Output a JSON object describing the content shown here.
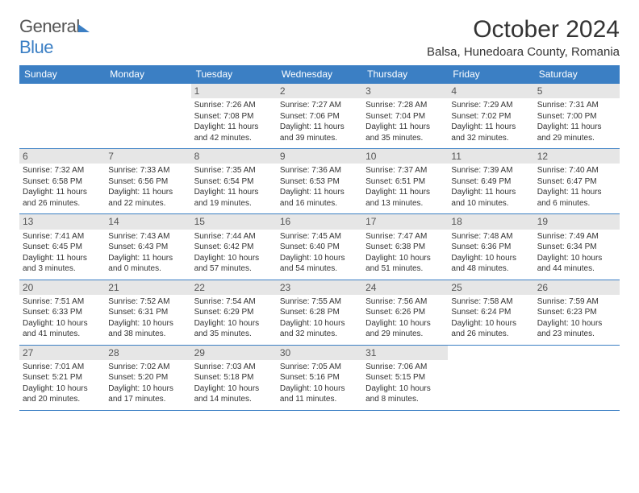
{
  "brand": {
    "first": "General",
    "second": "Blue"
  },
  "title": "October 2024",
  "location": "Balsa, Hunedoara County, Romania",
  "colors": {
    "header_bg": "#3b7fc4",
    "header_text": "#ffffff",
    "daynum_bg": "#e6e6e6",
    "border": "#3b7fc4",
    "text": "#333333"
  },
  "dayNames": [
    "Sunday",
    "Monday",
    "Tuesday",
    "Wednesday",
    "Thursday",
    "Friday",
    "Saturday"
  ],
  "weeks": [
    [
      null,
      null,
      {
        "n": "1",
        "sr": "Sunrise: 7:26 AM",
        "ss": "Sunset: 7:08 PM",
        "dl1": "Daylight: 11 hours",
        "dl2": "and 42 minutes."
      },
      {
        "n": "2",
        "sr": "Sunrise: 7:27 AM",
        "ss": "Sunset: 7:06 PM",
        "dl1": "Daylight: 11 hours",
        "dl2": "and 39 minutes."
      },
      {
        "n": "3",
        "sr": "Sunrise: 7:28 AM",
        "ss": "Sunset: 7:04 PM",
        "dl1": "Daylight: 11 hours",
        "dl2": "and 35 minutes."
      },
      {
        "n": "4",
        "sr": "Sunrise: 7:29 AM",
        "ss": "Sunset: 7:02 PM",
        "dl1": "Daylight: 11 hours",
        "dl2": "and 32 minutes."
      },
      {
        "n": "5",
        "sr": "Sunrise: 7:31 AM",
        "ss": "Sunset: 7:00 PM",
        "dl1": "Daylight: 11 hours",
        "dl2": "and 29 minutes."
      }
    ],
    [
      {
        "n": "6",
        "sr": "Sunrise: 7:32 AM",
        "ss": "Sunset: 6:58 PM",
        "dl1": "Daylight: 11 hours",
        "dl2": "and 26 minutes."
      },
      {
        "n": "7",
        "sr": "Sunrise: 7:33 AM",
        "ss": "Sunset: 6:56 PM",
        "dl1": "Daylight: 11 hours",
        "dl2": "and 22 minutes."
      },
      {
        "n": "8",
        "sr": "Sunrise: 7:35 AM",
        "ss": "Sunset: 6:54 PM",
        "dl1": "Daylight: 11 hours",
        "dl2": "and 19 minutes."
      },
      {
        "n": "9",
        "sr": "Sunrise: 7:36 AM",
        "ss": "Sunset: 6:53 PM",
        "dl1": "Daylight: 11 hours",
        "dl2": "and 16 minutes."
      },
      {
        "n": "10",
        "sr": "Sunrise: 7:37 AM",
        "ss": "Sunset: 6:51 PM",
        "dl1": "Daylight: 11 hours",
        "dl2": "and 13 minutes."
      },
      {
        "n": "11",
        "sr": "Sunrise: 7:39 AM",
        "ss": "Sunset: 6:49 PM",
        "dl1": "Daylight: 11 hours",
        "dl2": "and 10 minutes."
      },
      {
        "n": "12",
        "sr": "Sunrise: 7:40 AM",
        "ss": "Sunset: 6:47 PM",
        "dl1": "Daylight: 11 hours",
        "dl2": "and 6 minutes."
      }
    ],
    [
      {
        "n": "13",
        "sr": "Sunrise: 7:41 AM",
        "ss": "Sunset: 6:45 PM",
        "dl1": "Daylight: 11 hours",
        "dl2": "and 3 minutes."
      },
      {
        "n": "14",
        "sr": "Sunrise: 7:43 AM",
        "ss": "Sunset: 6:43 PM",
        "dl1": "Daylight: 11 hours",
        "dl2": "and 0 minutes."
      },
      {
        "n": "15",
        "sr": "Sunrise: 7:44 AM",
        "ss": "Sunset: 6:42 PM",
        "dl1": "Daylight: 10 hours",
        "dl2": "and 57 minutes."
      },
      {
        "n": "16",
        "sr": "Sunrise: 7:45 AM",
        "ss": "Sunset: 6:40 PM",
        "dl1": "Daylight: 10 hours",
        "dl2": "and 54 minutes."
      },
      {
        "n": "17",
        "sr": "Sunrise: 7:47 AM",
        "ss": "Sunset: 6:38 PM",
        "dl1": "Daylight: 10 hours",
        "dl2": "and 51 minutes."
      },
      {
        "n": "18",
        "sr": "Sunrise: 7:48 AM",
        "ss": "Sunset: 6:36 PM",
        "dl1": "Daylight: 10 hours",
        "dl2": "and 48 minutes."
      },
      {
        "n": "19",
        "sr": "Sunrise: 7:49 AM",
        "ss": "Sunset: 6:34 PM",
        "dl1": "Daylight: 10 hours",
        "dl2": "and 44 minutes."
      }
    ],
    [
      {
        "n": "20",
        "sr": "Sunrise: 7:51 AM",
        "ss": "Sunset: 6:33 PM",
        "dl1": "Daylight: 10 hours",
        "dl2": "and 41 minutes."
      },
      {
        "n": "21",
        "sr": "Sunrise: 7:52 AM",
        "ss": "Sunset: 6:31 PM",
        "dl1": "Daylight: 10 hours",
        "dl2": "and 38 minutes."
      },
      {
        "n": "22",
        "sr": "Sunrise: 7:54 AM",
        "ss": "Sunset: 6:29 PM",
        "dl1": "Daylight: 10 hours",
        "dl2": "and 35 minutes."
      },
      {
        "n": "23",
        "sr": "Sunrise: 7:55 AM",
        "ss": "Sunset: 6:28 PM",
        "dl1": "Daylight: 10 hours",
        "dl2": "and 32 minutes."
      },
      {
        "n": "24",
        "sr": "Sunrise: 7:56 AM",
        "ss": "Sunset: 6:26 PM",
        "dl1": "Daylight: 10 hours",
        "dl2": "and 29 minutes."
      },
      {
        "n": "25",
        "sr": "Sunrise: 7:58 AM",
        "ss": "Sunset: 6:24 PM",
        "dl1": "Daylight: 10 hours",
        "dl2": "and 26 minutes."
      },
      {
        "n": "26",
        "sr": "Sunrise: 7:59 AM",
        "ss": "Sunset: 6:23 PM",
        "dl1": "Daylight: 10 hours",
        "dl2": "and 23 minutes."
      }
    ],
    [
      {
        "n": "27",
        "sr": "Sunrise: 7:01 AM",
        "ss": "Sunset: 5:21 PM",
        "dl1": "Daylight: 10 hours",
        "dl2": "and 20 minutes."
      },
      {
        "n": "28",
        "sr": "Sunrise: 7:02 AM",
        "ss": "Sunset: 5:20 PM",
        "dl1": "Daylight: 10 hours",
        "dl2": "and 17 minutes."
      },
      {
        "n": "29",
        "sr": "Sunrise: 7:03 AM",
        "ss": "Sunset: 5:18 PM",
        "dl1": "Daylight: 10 hours",
        "dl2": "and 14 minutes."
      },
      {
        "n": "30",
        "sr": "Sunrise: 7:05 AM",
        "ss": "Sunset: 5:16 PM",
        "dl1": "Daylight: 10 hours",
        "dl2": "and 11 minutes."
      },
      {
        "n": "31",
        "sr": "Sunrise: 7:06 AM",
        "ss": "Sunset: 5:15 PM",
        "dl1": "Daylight: 10 hours",
        "dl2": "and 8 minutes."
      },
      null,
      null
    ]
  ]
}
